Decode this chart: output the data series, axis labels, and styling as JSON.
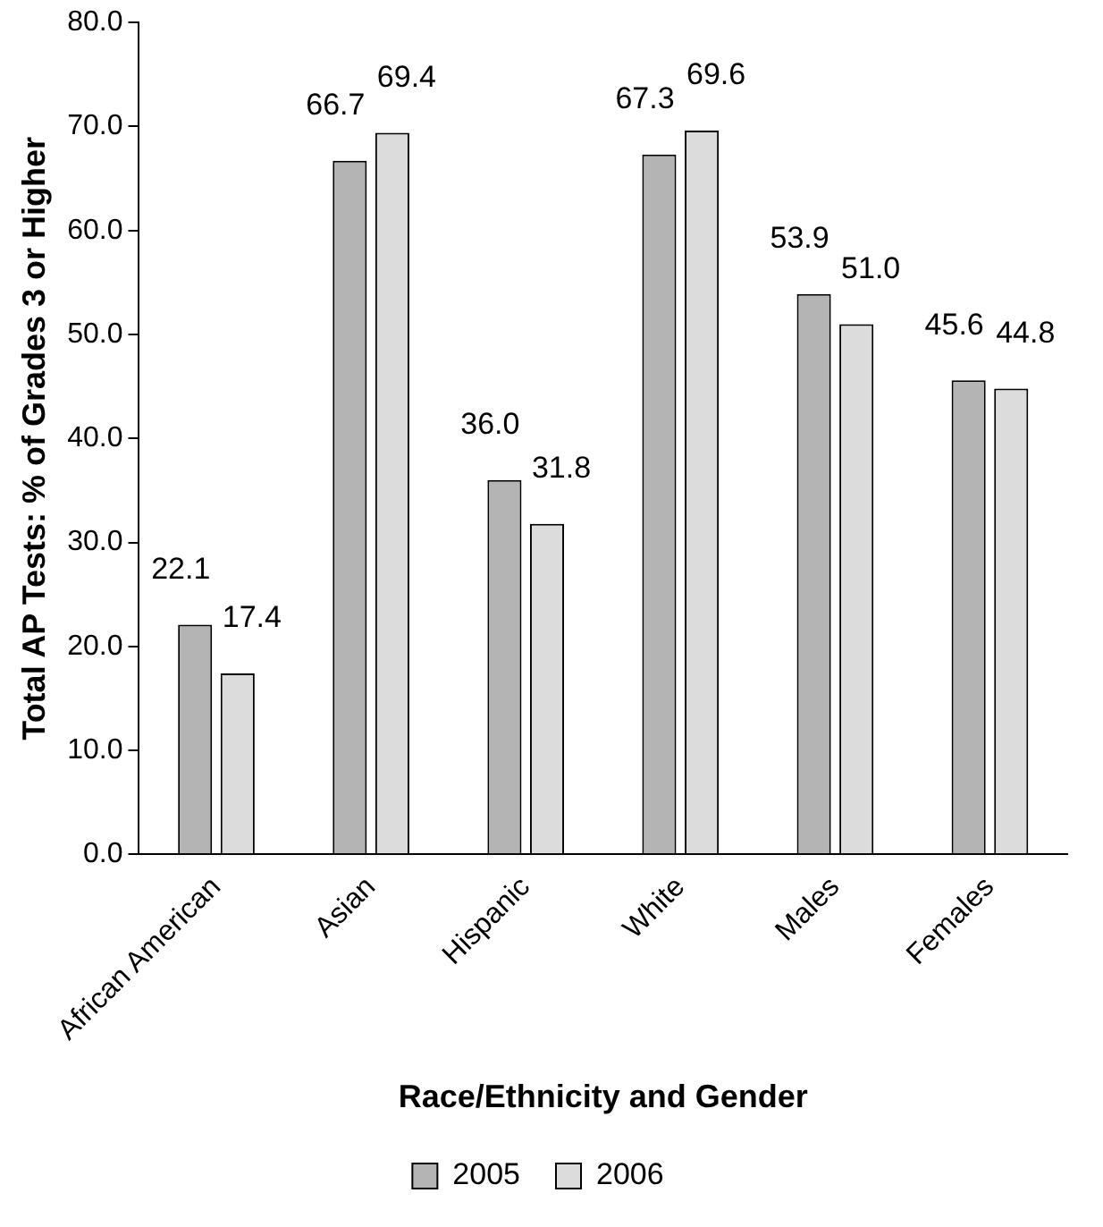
{
  "chart_data": {
    "type": "bar",
    "xlabel": "Race/Ethnicity and Gender",
    "ylabel": "Total AP Tests: % of Grades 3 or Higher",
    "categories": [
      "African American",
      "Asian",
      "Hispanic",
      "White",
      "Males",
      "Females"
    ],
    "series": [
      {
        "name": "2005",
        "color": "#b4b4b4",
        "values": [
          22.1,
          66.7,
          36.0,
          67.3,
          53.9,
          45.6
        ],
        "value_labels": [
          "22.1",
          "66.7",
          "36.0",
          "67.3",
          "53.9",
          "45.6"
        ]
      },
      {
        "name": "2006",
        "color": "#dcdcdc",
        "values": [
          17.4,
          69.4,
          31.8,
          69.6,
          51.0,
          44.8
        ],
        "value_labels": [
          "17.4",
          "69.4",
          "31.8",
          "69.6",
          "51.0",
          "44.8"
        ]
      }
    ],
    "ylim": [
      0,
      80
    ],
    "yticks": [
      {
        "value": 0,
        "label": "0.0"
      },
      {
        "value": 10,
        "label": "10.0"
      },
      {
        "value": 20,
        "label": "20.0"
      },
      {
        "value": 30,
        "label": "30.0"
      },
      {
        "value": 40,
        "label": "40.0"
      },
      {
        "value": 50,
        "label": "50.0"
      },
      {
        "value": 60,
        "label": "60.0"
      },
      {
        "value": 70,
        "label": "70.0"
      },
      {
        "value": 80,
        "label": "80.0"
      }
    ],
    "grid": false,
    "legend": "bottom"
  }
}
